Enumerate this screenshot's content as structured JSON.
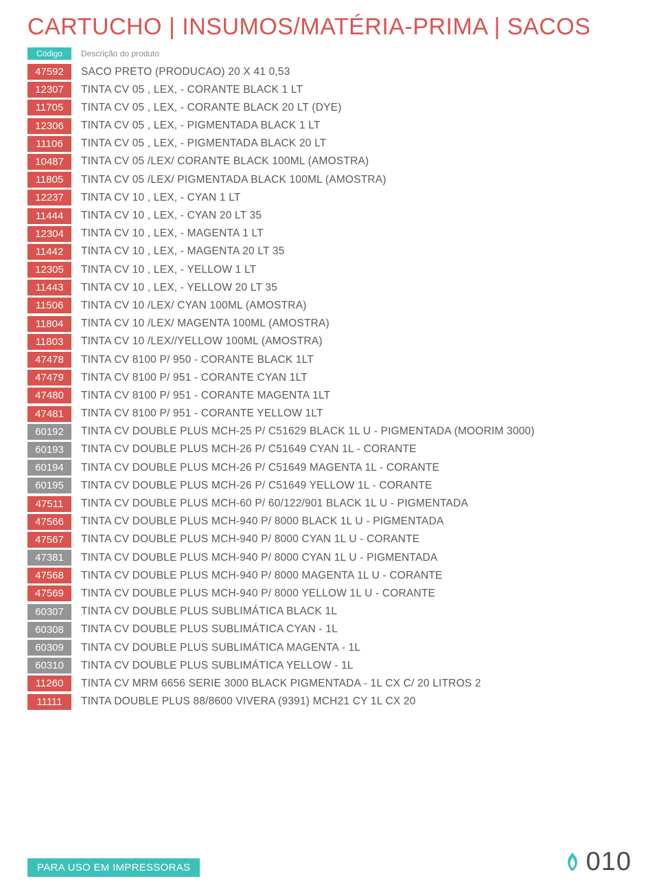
{
  "title": "CARTUCHO | INSUMOS/MATÉRIA-PRIMA | SACOS",
  "title_color": "#d9534f",
  "header": {
    "code": "Código",
    "desc": "Descrição do produto"
  },
  "footer_label": "PARA USO EM IMPRESSORAS",
  "page_number": "010",
  "accent_color": "#3cc1b8",
  "text_color": "#585858",
  "rows": [
    {
      "code": "47592",
      "code_bg": "#d9534f",
      "desc": "SACO PRETO (PRODUCAO) 20 X 41 0,53"
    },
    {
      "code": "12307",
      "code_bg": "#d9534f",
      "desc": "TINTA CV 05 , LEX,  - CORANTE BLACK 1 LT"
    },
    {
      "code": "11705",
      "code_bg": "#d9534f",
      "desc": "TINTA CV 05 , LEX,  - CORANTE BLACK 20 LT (DYE)"
    },
    {
      "code": "12306",
      "code_bg": "#d9534f",
      "desc": "TINTA CV 05 , LEX,  - PIGMENTADA BLACK 1 LT"
    },
    {
      "code": "11106",
      "code_bg": "#d9534f",
      "desc": "TINTA CV 05 , LEX,  - PIGMENTADA BLACK 20 LT"
    },
    {
      "code": "10487",
      "code_bg": "#d9534f",
      "desc": "TINTA CV 05 /LEX/ CORANTE BLACK 100ML (AMOSTRA)"
    },
    {
      "code": "11805",
      "code_bg": "#d9534f",
      "desc": "TINTA CV 05 /LEX/ PIGMENTADA BLACK 100ML (AMOSTRA)"
    },
    {
      "code": "12237",
      "code_bg": "#d9534f",
      "desc": "TINTA CV 10 , LEX,  - CYAN 1 LT"
    },
    {
      "code": "11444",
      "code_bg": "#d9534f",
      "desc": "TINTA CV 10 , LEX,  - CYAN 20 LT 35"
    },
    {
      "code": "12304",
      "code_bg": "#d9534f",
      "desc": "TINTA CV 10 , LEX,  - MAGENTA 1 LT"
    },
    {
      "code": "11442",
      "code_bg": "#d9534f",
      "desc": "TINTA CV 10 , LEX,  - MAGENTA 20 LT 35"
    },
    {
      "code": "12305",
      "code_bg": "#d9534f",
      "desc": "TINTA CV 10 , LEX,  - YELLOW 1 LT"
    },
    {
      "code": "11443",
      "code_bg": "#d9534f",
      "desc": "TINTA CV 10 , LEX,  - YELLOW 20 LT 35"
    },
    {
      "code": "11506",
      "code_bg": "#d9534f",
      "desc": "TINTA CV 10 /LEX/ CYAN 100ML (AMOSTRA)"
    },
    {
      "code": "11804",
      "code_bg": "#d9534f",
      "desc": "TINTA CV 10 /LEX/ MAGENTA 100ML (AMOSTRA)"
    },
    {
      "code": "11803",
      "code_bg": "#d9534f",
      "desc": "TINTA CV 10 /LEX//YELLOW 100ML (AMOSTRA)"
    },
    {
      "code": "47478",
      "code_bg": "#d9534f",
      "desc": "TINTA CV 8100 P/ 950 - CORANTE BLACK 1LT"
    },
    {
      "code": "47479",
      "code_bg": "#d9534f",
      "desc": "TINTA CV 8100 P/ 951 - CORANTE CYAN 1LT"
    },
    {
      "code": "47480",
      "code_bg": "#d9534f",
      "desc": "TINTA CV 8100 P/ 951 - CORANTE MAGENTA 1LT"
    },
    {
      "code": "47481",
      "code_bg": "#d9534f",
      "desc": "TINTA CV 8100 P/ 951 - CORANTE YELLOW 1LT"
    },
    {
      "code": "60192",
      "code_bg": "#949494",
      "desc": "TINTA CV DOUBLE PLUS MCH-25 P/  C51629 BLACK 1L U - PIGMENTADA (MOORIM 3000)"
    },
    {
      "code": "60193",
      "code_bg": "#949494",
      "desc": "TINTA CV DOUBLE PLUS MCH-26 P/  C51649 CYAN 1L - CORANTE"
    },
    {
      "code": "60194",
      "code_bg": "#949494",
      "desc": "TINTA CV DOUBLE PLUS MCH-26 P/  C51649 MAGENTA 1L - CORANTE"
    },
    {
      "code": "60195",
      "code_bg": "#949494",
      "desc": "TINTA CV DOUBLE PLUS MCH-26 P/  C51649 YELLOW 1L - CORANTE"
    },
    {
      "code": "47511",
      "code_bg": "#d9534f",
      "desc": "TINTA CV DOUBLE PLUS MCH-60 P/  60/122/901 BLACK 1L U - PIGMENTADA"
    },
    {
      "code": "47566",
      "code_bg": "#d9534f",
      "desc": "TINTA CV DOUBLE PLUS MCH-940 P/  8000 BLACK 1L U - PIGMENTADA"
    },
    {
      "code": "47567",
      "code_bg": "#d9534f",
      "desc": "TINTA CV DOUBLE PLUS MCH-940 P/  8000 CYAN 1L U - CORANTE"
    },
    {
      "code": "47381",
      "code_bg": "#949494",
      "desc": "TINTA CV DOUBLE PLUS MCH-940 P/  8000 CYAN 1L U - PIGMENTADA"
    },
    {
      "code": "47568",
      "code_bg": "#d9534f",
      "desc": "TINTA CV DOUBLE PLUS MCH-940 P/  8000 MAGENTA 1L U - CORANTE"
    },
    {
      "code": "47569",
      "code_bg": "#d9534f",
      "desc": "TINTA CV DOUBLE PLUS MCH-940 P/  8000 YELLOW 1L U - CORANTE"
    },
    {
      "code": "60307",
      "code_bg": "#949494",
      "desc": "TINTA CV DOUBLE PLUS SUBLIMÁTICA BLACK 1L"
    },
    {
      "code": "60308",
      "code_bg": "#949494",
      "desc": "TINTA CV DOUBLE PLUS SUBLIMÁTICA CYAN - 1L"
    },
    {
      "code": "60309",
      "code_bg": "#949494",
      "desc": "TINTA CV DOUBLE PLUS SUBLIMÁTICA MAGENTA - 1L"
    },
    {
      "code": "60310",
      "code_bg": "#949494",
      "desc": "TINTA CV DOUBLE PLUS SUBLIMÁTICA YELLOW - 1L"
    },
    {
      "code": "11260",
      "code_bg": "#d9534f",
      "desc": "TINTA CV MRM 6656 SERIE 3000 BLACK PIGMENTADA - 1L CX C/ 20 LITROS 2"
    },
    {
      "code": "11111",
      "code_bg": "#d9534f",
      "desc": "TINTA DOUBLE PLUS 88/8600 VIVERA (9391) MCH21 CY 1L CX 20"
    }
  ]
}
